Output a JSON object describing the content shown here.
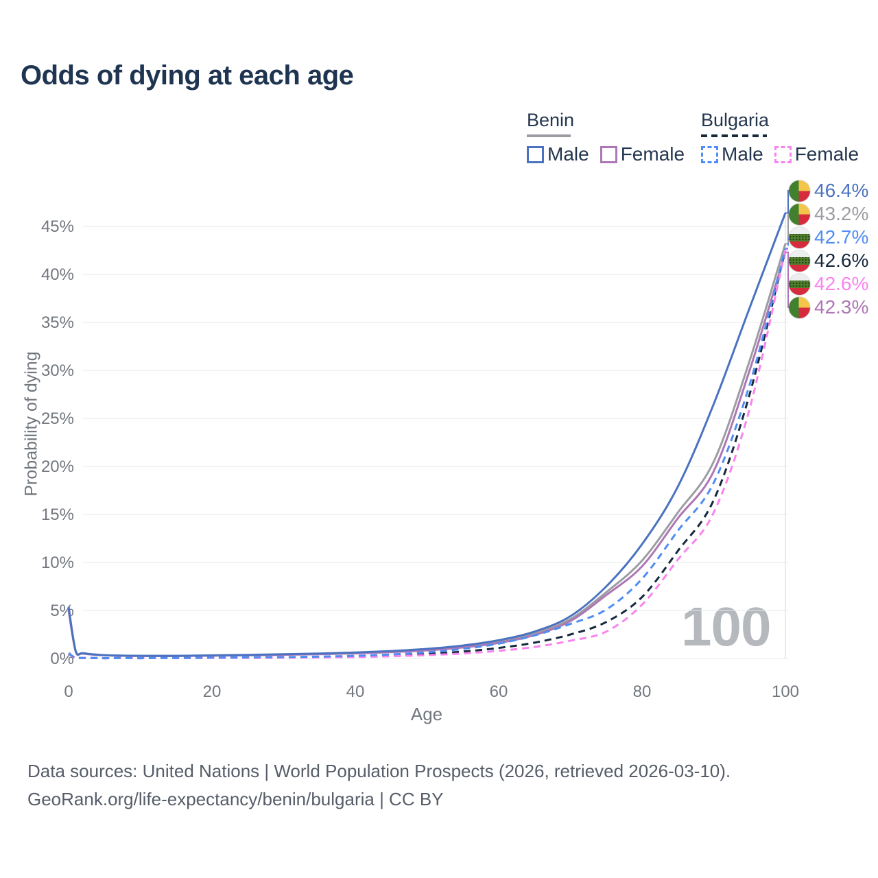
{
  "title": "Odds of dying at each age",
  "legend": {
    "groups": [
      {
        "label": "Benin",
        "items": [
          {
            "label": "Male"
          },
          {
            "label": "Female"
          }
        ]
      },
      {
        "label": "Bulgaria",
        "items": [
          {
            "label": "Male"
          },
          {
            "label": "Female"
          }
        ]
      }
    ]
  },
  "hover_age_label": "100",
  "footer": {
    "line1": "Data sources: United Nations | World Population Prospects (2026, retrieved 2026-03-10).",
    "line2": "GeoRank.org/life-expectancy/benin/bulgaria | CC BY"
  },
  "chart_data": {
    "type": "line",
    "title": "Odds of dying at each age",
    "xlabel": "Age",
    "ylabel": "Probability of dying",
    "xlim": [
      0,
      100
    ],
    "ylim": [
      0,
      47
    ],
    "grid": "horizontal",
    "legend_position": "top-right",
    "xtick_values": [
      0,
      20,
      40,
      60,
      80,
      100
    ],
    "xtick_labels": [
      "0",
      "20",
      "40",
      "60",
      "80",
      "100"
    ],
    "ytick_values": [
      0,
      5,
      10,
      15,
      20,
      25,
      30,
      35,
      40,
      45
    ],
    "ytick_labels": [
      "0%",
      "5%",
      "10%",
      "15%",
      "20%",
      "25%",
      "30%",
      "35%",
      "40%",
      "45%"
    ],
    "x": [
      0,
      1,
      2,
      5,
      10,
      15,
      20,
      25,
      30,
      35,
      40,
      45,
      50,
      55,
      60,
      65,
      70,
      75,
      80,
      85,
      90,
      95,
      100
    ],
    "series": [
      {
        "name": "Benin — Male",
        "country": "Benin",
        "sex": "Male",
        "line": "solid",
        "color": "#4a72c0",
        "values": [
          5.4,
          0.75,
          0.55,
          0.35,
          0.28,
          0.28,
          0.33,
          0.38,
          0.44,
          0.52,
          0.62,
          0.78,
          1.0,
          1.35,
          1.9,
          2.8,
          4.4,
          7.5,
          11.9,
          17.9,
          26.5,
          36.5,
          46.4
        ]
      },
      {
        "name": "Benin — Female",
        "country": "Benin",
        "sex": "Female",
        "line": "solid",
        "color": "#ad77b5",
        "values": [
          5.0,
          0.7,
          0.51,
          0.33,
          0.26,
          0.26,
          0.29,
          0.33,
          0.38,
          0.44,
          0.53,
          0.66,
          0.85,
          1.15,
          1.62,
          2.45,
          3.9,
          6.6,
          9.6,
          14.6,
          19.5,
          30.0,
          42.3
        ]
      },
      {
        "name": "Benin — Both sexes",
        "country": "Benin",
        "sex": "All",
        "line": "solid",
        "color": "#9c9ca3",
        "values": [
          5.2,
          0.72,
          0.53,
          0.34,
          0.27,
          0.27,
          0.31,
          0.36,
          0.41,
          0.48,
          0.57,
          0.72,
          0.92,
          1.25,
          1.75,
          2.6,
          4.1,
          6.9,
          10.2,
          15.2,
          20.5,
          31.0,
          43.2
        ]
      },
      {
        "name": "Bulgaria — Male",
        "country": "Bulgaria",
        "sex": "Male",
        "line": "dashed",
        "color": "#4f8df2",
        "values": [
          0.55,
          0.06,
          0.05,
          0.03,
          0.03,
          0.05,
          0.09,
          0.12,
          0.15,
          0.2,
          0.28,
          0.42,
          0.65,
          1.0,
          1.55,
          2.4,
          3.6,
          5.1,
          8.3,
          13.3,
          18.3,
          28.5,
          42.7
        ]
      },
      {
        "name": "Bulgaria — Female",
        "country": "Bulgaria",
        "sex": "Female",
        "line": "dashed",
        "color": "#f983ef",
        "values": [
          0.45,
          0.05,
          0.04,
          0.02,
          0.02,
          0.03,
          0.05,
          0.06,
          0.08,
          0.11,
          0.16,
          0.23,
          0.35,
          0.52,
          0.8,
          1.2,
          1.85,
          2.8,
          5.6,
          10.3,
          15.2,
          26.0,
          42.6
        ]
      },
      {
        "name": "Bulgaria — Both sexes",
        "country": "Bulgaria",
        "sex": "All",
        "line": "dashed",
        "color": "#16283c",
        "values": [
          0.5,
          0.05,
          0.04,
          0.03,
          0.03,
          0.04,
          0.07,
          0.09,
          0.11,
          0.15,
          0.22,
          0.32,
          0.48,
          0.72,
          1.1,
          1.65,
          2.5,
          3.8,
          6.4,
          11.2,
          16.5,
          27.5,
          42.6
        ]
      }
    ],
    "end_labels": [
      {
        "text": "46.4%",
        "flag": "benin",
        "color": "#4a72c0",
        "end_value": 46.4,
        "dashed": false
      },
      {
        "text": "43.2%",
        "flag": "benin",
        "color": "#9c9ca3",
        "end_value": 43.2,
        "dashed": false
      },
      {
        "text": "42.7%",
        "flag": "bulgaria",
        "color": "#4f8df2",
        "end_value": 42.7,
        "dashed": true
      },
      {
        "text": "42.6%",
        "flag": "bulgaria",
        "color": "#16283c",
        "end_value": 42.6,
        "dashed": true
      },
      {
        "text": "42.6%",
        "flag": "bulgaria",
        "color": "#f983ef",
        "end_value": 42.6,
        "dashed": true
      },
      {
        "text": "42.3%",
        "flag": "benin",
        "color": "#ad77b5",
        "end_value": 42.3,
        "dashed": false
      }
    ]
  }
}
